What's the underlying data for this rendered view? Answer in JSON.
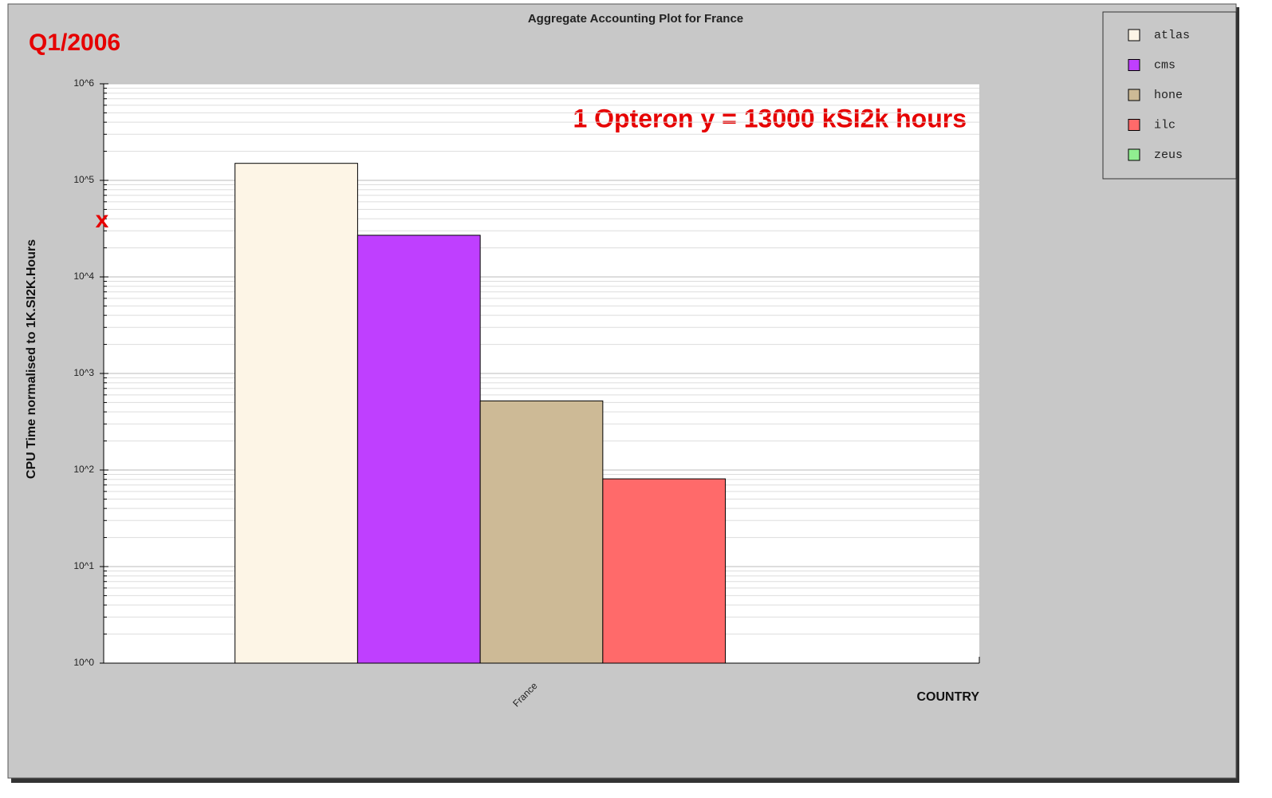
{
  "chart_data": {
    "type": "bar",
    "title": "Aggregate Accounting Plot for France",
    "xlabel": "COUNTRY",
    "ylabel": "CPU Time normalised to 1K.SI2K.Hours",
    "categories": [
      "France"
    ],
    "series": [
      {
        "name": "atlas",
        "color": "#fdf5e6",
        "values": [
          150000
        ]
      },
      {
        "name": "cms",
        "color": "#bf3fff",
        "values": [
          27000
        ]
      },
      {
        "name": "hone",
        "color": "#cdba96",
        "values": [
          520
        ]
      },
      {
        "name": "ilc",
        "color": "#ff6a6a",
        "values": [
          81
        ]
      },
      {
        "name": "zeus",
        "color": "#90ee90",
        "values": [
          null
        ]
      }
    ],
    "ylim": [
      1,
      1000000
    ],
    "yticks": [
      {
        "value": 1,
        "label": "10^0"
      },
      {
        "value": 10,
        "label": "10^1"
      },
      {
        "value": 100,
        "label": "10^2"
      },
      {
        "value": 1000,
        "label": "10^3"
      },
      {
        "value": 10000,
        "label": "10^4"
      },
      {
        "value": 100000,
        "label": "10^5"
      },
      {
        "value": 1000000,
        "label": "10^6"
      }
    ],
    "log_scale": true,
    "grid": true,
    "legend": "top-right",
    "annotations": [
      {
        "text": "Q1/2006"
      },
      {
        "text": "1 Opteron y = 13000 kSI2k hours"
      },
      {
        "text": "x",
        "y": 38000
      }
    ]
  }
}
